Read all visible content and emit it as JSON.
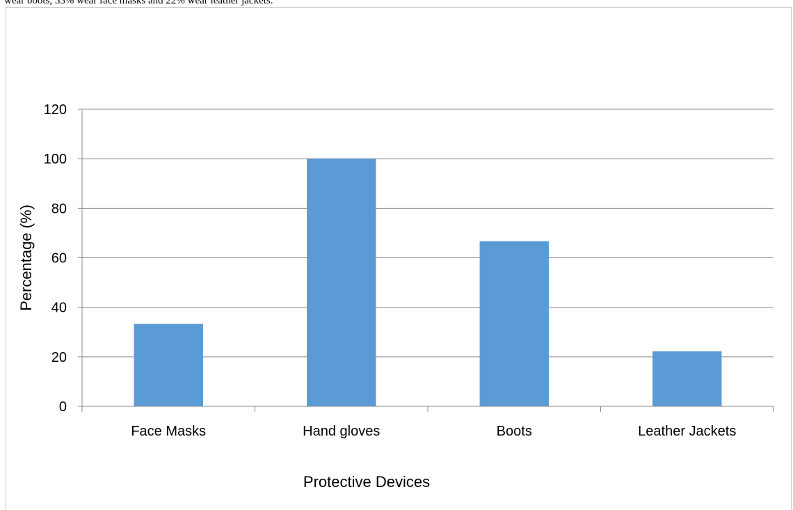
{
  "caption": {
    "text": "wear boots, 33% wear face masks and 22% wear leather jackets."
  },
  "chart_data": {
    "type": "bar",
    "categories": [
      "Face Masks",
      "Hand gloves",
      "Boots",
      "Leather Jackets"
    ],
    "values": [
      33.3,
      100,
      66.7,
      22.2
    ],
    "title": "",
    "xlabel": "Protective Devices",
    "ylabel": "Percentage (%)",
    "ylim": [
      0,
      120
    ],
    "yticks": [
      0,
      20,
      40,
      60,
      80,
      100,
      120
    ],
    "grid": true,
    "legend": "none",
    "bar_color": "#5b9bd5"
  }
}
